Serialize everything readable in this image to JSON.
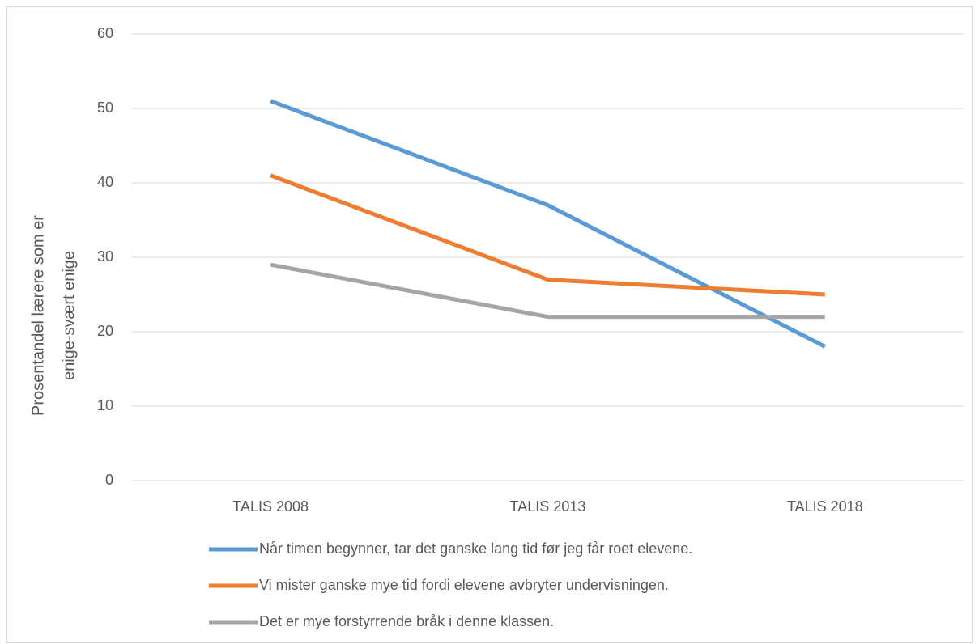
{
  "chart_data": {
    "type": "line",
    "y_label": [
      "Prosentandel lærere som er",
      "enige-svært enige"
    ],
    "categories": [
      "TALIS 2008",
      "TALIS 2013",
      "TALIS 2018"
    ],
    "series": [
      {
        "name": "Når timen begynner, tar det ganske lang tid før jeg får roet elevene.",
        "color": "#5b9bd5",
        "values": [
          51,
          37,
          18
        ]
      },
      {
        "name": "Vi mister ganske mye tid fordi elevene avbryter undervisningen.",
        "color": "#ed7d31",
        "values": [
          41,
          27,
          25
        ]
      },
      {
        "name": "Det er mye forstyrrende bråk i denne klassen.",
        "color": "#a5a5a5",
        "values": [
          29,
          22,
          22
        ]
      }
    ],
    "ylim": [
      0,
      60
    ],
    "yticks": [
      0,
      10,
      20,
      30,
      40,
      50,
      60
    ],
    "grid": true,
    "legend": "bottom"
  }
}
